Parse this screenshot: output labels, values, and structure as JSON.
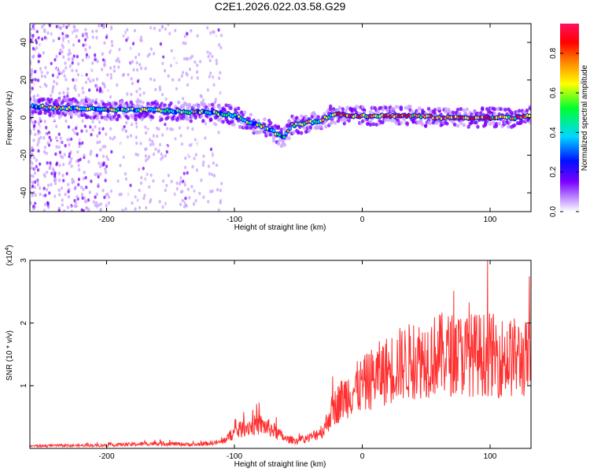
{
  "title": "C2E1.2026.022.03.58.G29",
  "chart_data": [
    {
      "type": "heatmap",
      "xlabel": "Height of straight line (km)",
      "ylabel": "Frequency (Hz)",
      "xlim": [
        -260,
        132
      ],
      "ylim": [
        -50,
        50
      ],
      "xticks": [
        -200,
        -100,
        0,
        100
      ],
      "xtick_labels": [
        "-200",
        "-100",
        "0",
        "100"
      ],
      "yticks": [
        -40,
        -20,
        0,
        20,
        40
      ],
      "ytick_labels": [
        "-40",
        "-20",
        "0",
        "20",
        "40"
      ],
      "colorbar": {
        "label": "Normalized spectral amplitude",
        "range": [
          0,
          0.95
        ],
        "ticks": [
          0.0,
          0.2,
          0.4,
          0.6,
          0.8
        ],
        "tick_labels": [
          "0.0",
          "0.2",
          "0.4",
          "0.6",
          "0.8"
        ],
        "colors": [
          "#ffffff",
          "#c8a0ff",
          "#7a00ff",
          "#0010ff",
          "#00d8ff",
          "#00ff30",
          "#ffff00",
          "#ff8000",
          "#ff0000",
          "#ff1060"
        ]
      },
      "ridge": {
        "x": [
          -255,
          -240,
          -220,
          -200,
          -180,
          -160,
          -140,
          -120,
          -100,
          -90,
          -80,
          -70,
          -62,
          -55,
          -45,
          -35,
          -25,
          -18,
          -10,
          0,
          20,
          40,
          60,
          80,
          100,
          120,
          132
        ],
        "y": [
          6,
          5,
          5,
          4,
          4,
          4,
          3,
          3,
          1,
          -2,
          -4,
          -7,
          -11,
          -4,
          -3,
          -2,
          1,
          2,
          1,
          1,
          1,
          1,
          0,
          0,
          0,
          0,
          1
        ]
      },
      "grid": false
    },
    {
      "type": "line",
      "xlabel": "Height of straight line (km)",
      "ylabel": "SNR (10 * v/v)",
      "multiplier_label": "(x10",
      "multiplier_exp": "4",
      "multiplier_close": ")",
      "xlim": [
        -260,
        132
      ],
      "ylim": [
        0,
        3
      ],
      "xticks": [
        -200,
        -100,
        0,
        100
      ],
      "xtick_labels": [
        "-200",
        "-100",
        "0",
        "100"
      ],
      "yticks": [
        1,
        2,
        3
      ],
      "ytick_labels": [
        "1",
        "2",
        "3"
      ],
      "color": "#ff3030",
      "envelope": {
        "x": [
          -260,
          -200,
          -160,
          -130,
          -110,
          -100,
          -90,
          -80,
          -70,
          -60,
          -50,
          -40,
          -30,
          -25,
          -20,
          -15,
          -10,
          0,
          10,
          20,
          30,
          40,
          50,
          60,
          70,
          80,
          90,
          100,
          110,
          120,
          132
        ],
        "y": [
          0.04,
          0.05,
          0.08,
          0.06,
          0.1,
          0.25,
          0.35,
          0.38,
          0.3,
          0.15,
          0.12,
          0.18,
          0.3,
          0.55,
          0.7,
          0.8,
          0.9,
          1.0,
          1.15,
          1.25,
          1.35,
          1.4,
          1.45,
          1.5,
          1.5,
          1.5,
          1.5,
          1.5,
          1.45,
          1.45,
          1.4
        ]
      },
      "grid": false
    }
  ]
}
